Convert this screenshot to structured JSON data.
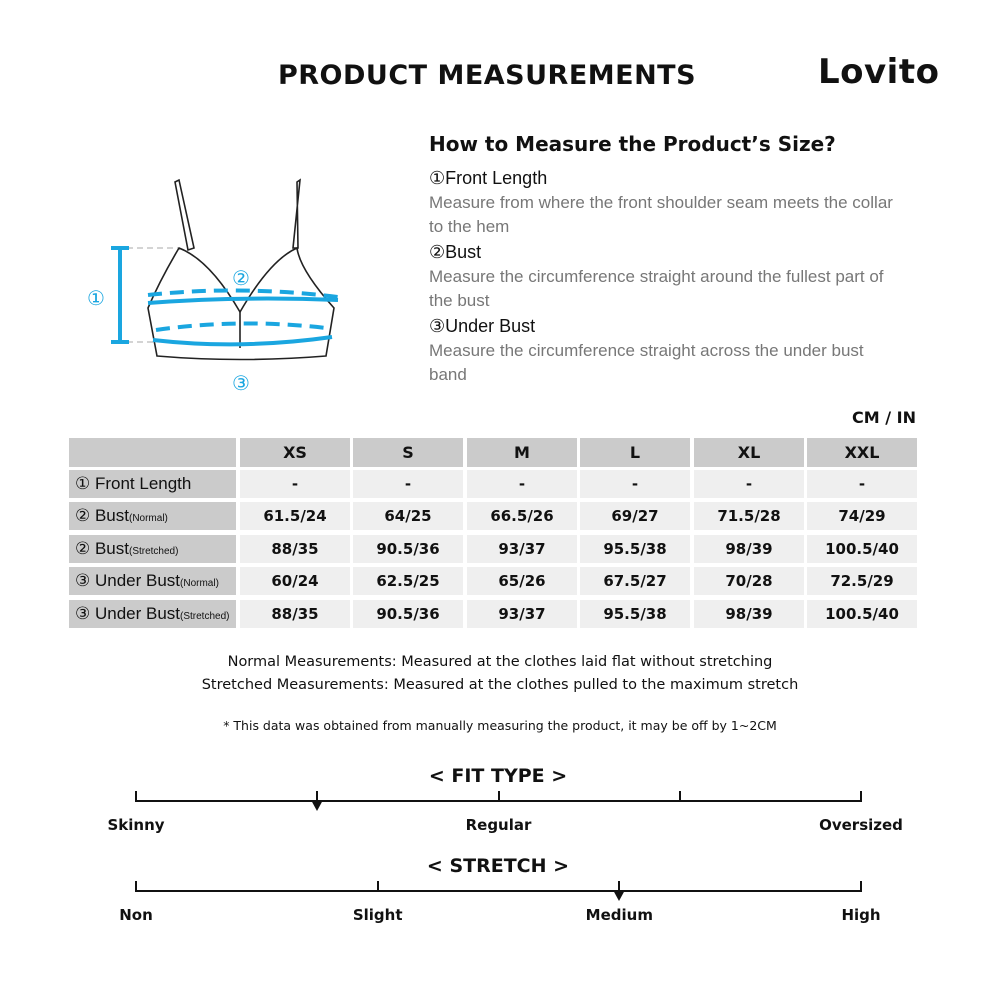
{
  "title": "PRODUCT MEASUREMENTS",
  "logo": "Lovito",
  "howto": {
    "heading": "How to Measure the Product’s Size?",
    "items": [
      {
        "label": "①Front Length",
        "desc": "Measure from where the front shoulder seam meets the collar to the hem"
      },
      {
        "label": "②Bust",
        "desc": "Measure the circumference straight around the fullest part of the bust"
      },
      {
        "label": "③Under Bust",
        "desc": "Measure the circumference straight across the under bust band"
      }
    ]
  },
  "diagram": {
    "markers": [
      "①",
      "②",
      "③"
    ],
    "accent": "#1aa6e0"
  },
  "unit": "CM / IN",
  "table": {
    "sizes": [
      "XS",
      "S",
      "M",
      "L",
      "XL",
      "XXL"
    ],
    "rows": [
      {
        "label": "① Front Length",
        "sub": "",
        "values": [
          "-",
          "-",
          "-",
          "-",
          "-",
          "-"
        ]
      },
      {
        "label": "② Bust",
        "sub": "(Normal)",
        "values": [
          "61.5/24",
          "64/25",
          "66.5/26",
          "69/27",
          "71.5/28",
          "74/29"
        ]
      },
      {
        "label": "② Bust",
        "sub": "(Stretched)",
        "values": [
          "88/35",
          "90.5/36",
          "93/37",
          "95.5/38",
          "98/39",
          "100.5/40"
        ]
      },
      {
        "label": "③ Under Bust",
        "sub": "(Normal)",
        "values": [
          "60/24",
          "62.5/25",
          "65/26",
          "67.5/27",
          "70/28",
          "72.5/29"
        ]
      },
      {
        "label": "③ Under Bust",
        "sub": "(Stretched)",
        "values": [
          "88/35",
          "90.5/36",
          "93/37",
          "95.5/38",
          "98/39",
          "100.5/40"
        ]
      }
    ]
  },
  "notes": {
    "normal": "Normal Measurements: Measured at the clothes laid flat without stretching",
    "stretched": "Stretched  Measurements: Measured at the clothes pulled to the maximum stretch",
    "disclaimer": "* This data was obtained from manually measuring the product, it may be off by 1~2CM"
  },
  "fit_type": {
    "title": "< FIT TYPE >",
    "labels": [
      "Skinny",
      "Regular",
      "Oversized"
    ],
    "marker_fraction": 0.25
  },
  "stretch": {
    "title": "< STRETCH >",
    "labels": [
      "Non",
      "Slight",
      "Medium",
      "High"
    ],
    "marker_fraction": 0.6667
  }
}
